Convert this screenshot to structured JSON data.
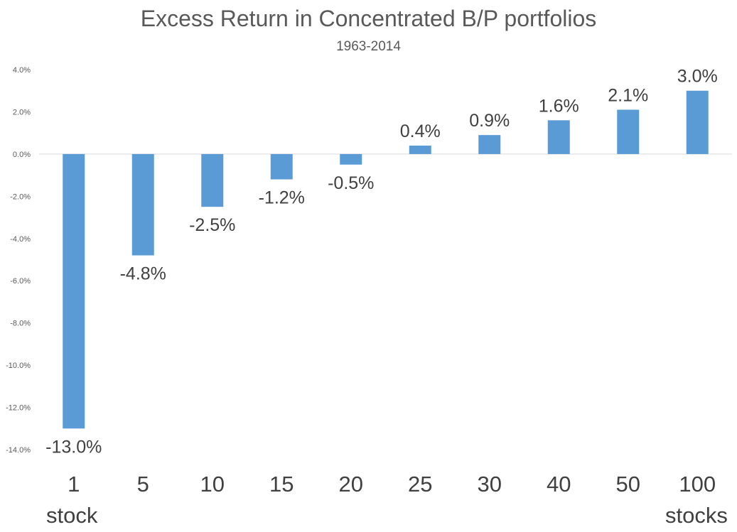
{
  "chart_data": {
    "type": "bar",
    "title": "Excess Return in Concentrated B/P portfolios",
    "subtitle": "1963-2014",
    "categories": [
      "1",
      "5",
      "10",
      "15",
      "20",
      "25",
      "30",
      "40",
      "50",
      "100"
    ],
    "values": [
      -13.0,
      -4.8,
      -2.5,
      -1.2,
      -0.5,
      0.4,
      0.9,
      1.6,
      2.1,
      3.0
    ],
    "data_labels": [
      "-13.0%",
      "-4.8%",
      "-2.5%",
      "-1.2%",
      "-0.5%",
      "0.4%",
      "0.9%",
      "1.6%",
      "2.1%",
      "3.0%"
    ],
    "ylim": [
      -14,
      4
    ],
    "yticks": [
      4,
      2,
      0,
      -2,
      -4,
      -6,
      -8,
      -10,
      -12,
      -14
    ],
    "ytick_labels": [
      "4.0%",
      "2.0%",
      "0.0%",
      "-2.0%",
      "-4.0%",
      "-6.0%",
      "-8.0%",
      "-10.0%",
      "-12.0%",
      "-14.0%"
    ],
    "x_notes": {
      "first": "stock",
      "last": "stocks"
    },
    "grid": false,
    "legend": "none",
    "bar_color": "#5B9BD5",
    "zero_line_color": "#D9D9D9"
  }
}
